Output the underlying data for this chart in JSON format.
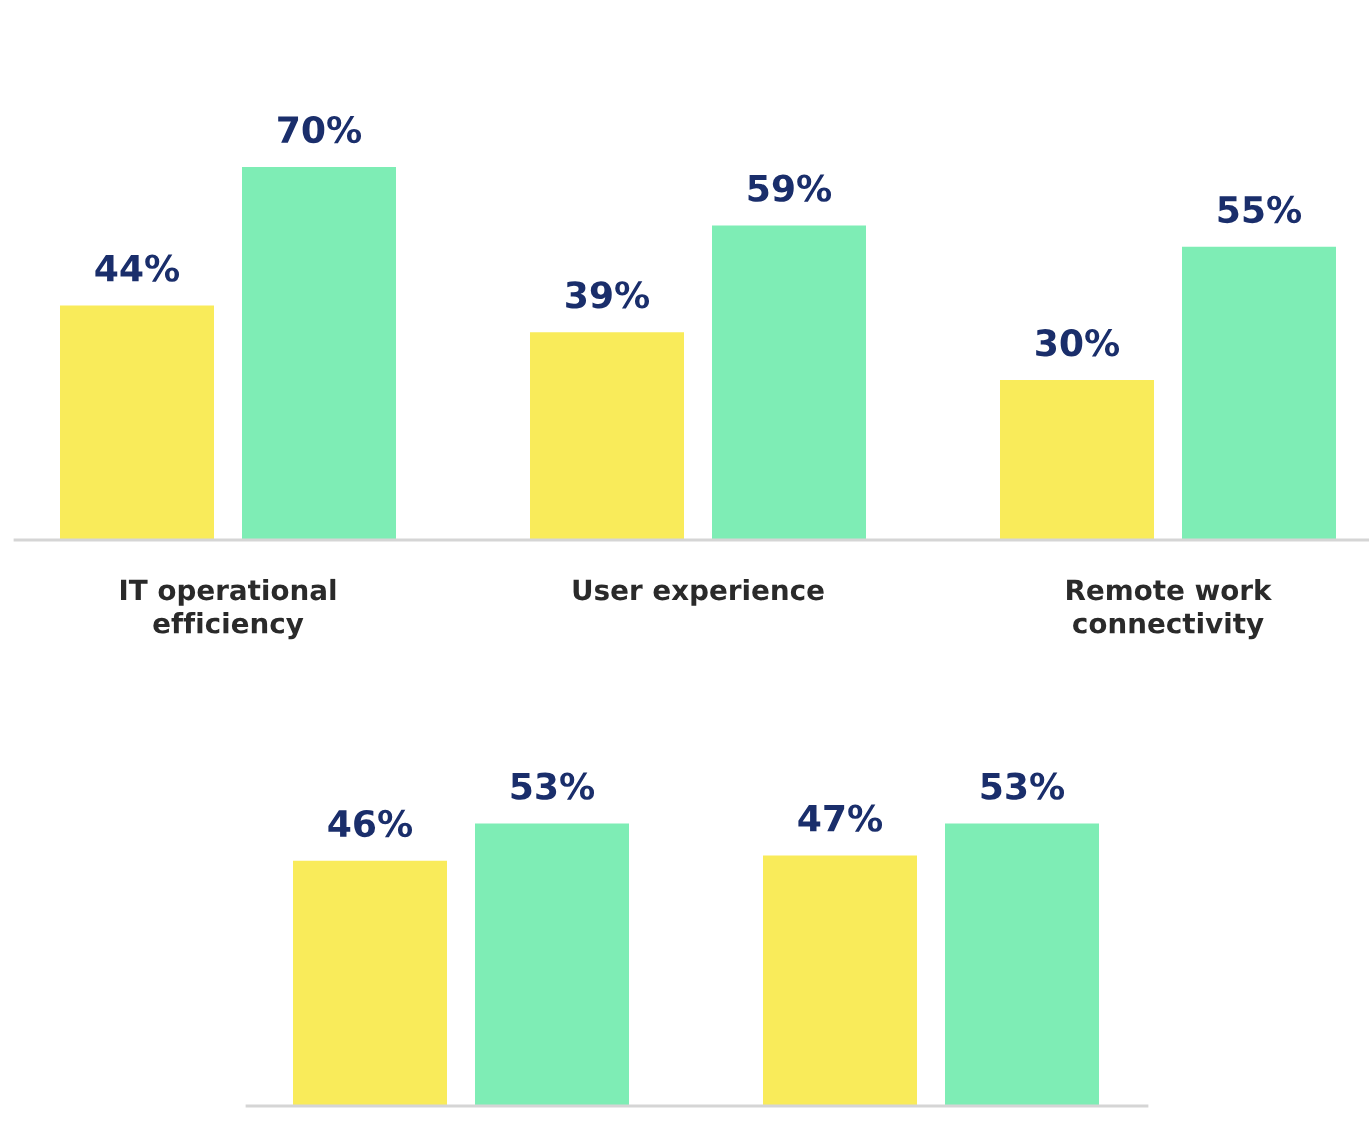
{
  "chart_data": [
    {
      "type": "bar",
      "categories": [
        "IT operational\nefficiency",
        "User experience",
        "Remote work\nconnectivity"
      ],
      "series": [
        {
          "color": "#f9eb5a",
          "values": [
            44,
            39,
            30
          ],
          "value_labels": [
            "44%",
            "39%",
            "30%"
          ]
        },
        {
          "color": "#7eedb5",
          "values": [
            70,
            59,
            55
          ],
          "value_labels": [
            "70%",
            "59%",
            "55%"
          ]
        }
      ],
      "grid": false,
      "legend": false
    },
    {
      "type": "bar",
      "categories": [
        null,
        null
      ],
      "series": [
        {
          "color": "#f9eb5a",
          "values": [
            46,
            47
          ],
          "value_labels": [
            "46%",
            "47%"
          ]
        },
        {
          "color": "#7eedb5",
          "values": [
            53,
            53
          ],
          "value_labels": [
            "53%",
            "53%"
          ]
        }
      ],
      "grid": false,
      "legend": false
    }
  ]
}
